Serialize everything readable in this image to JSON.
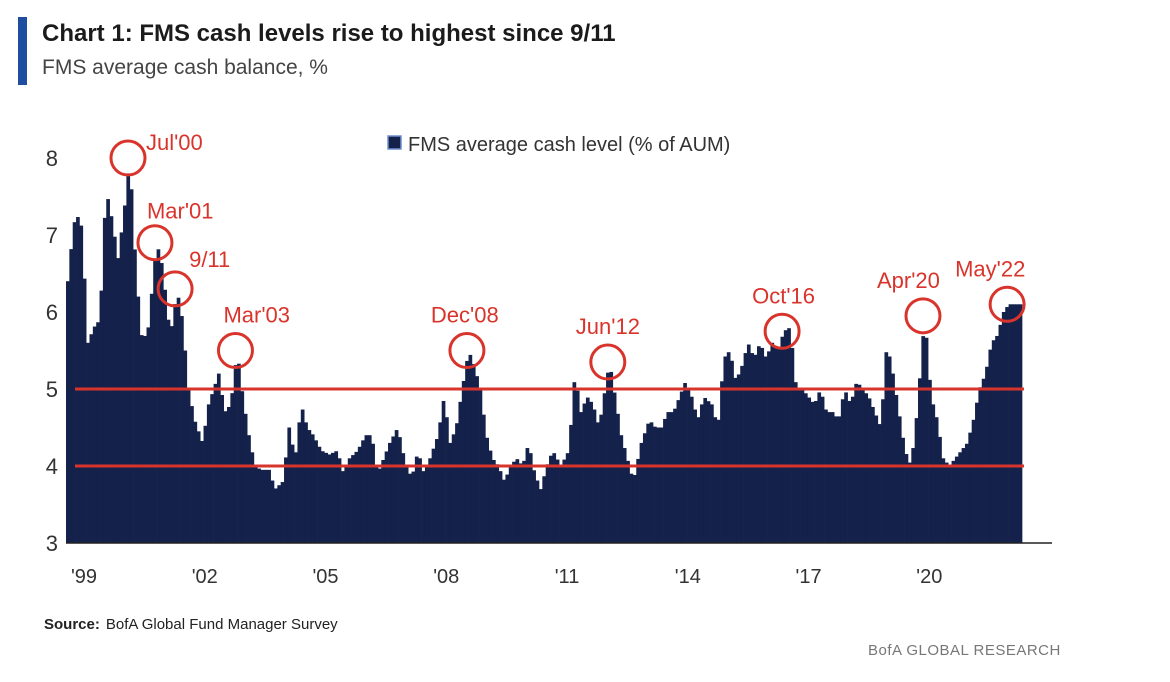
{
  "header": {
    "title": "Chart 1: FMS cash levels rise to highest since 9/11",
    "subtitle": "FMS average cash balance, %"
  },
  "footer": {
    "source_label": "Source:",
    "source_text": "BofA Global Fund Manager Survey",
    "brand": "BofA GLOBAL RESEARCH"
  },
  "colors": {
    "bars": "#14214b",
    "lines": "#d9342b",
    "annotation": "#d9342b",
    "accent": "#1f4ea1"
  },
  "chart_data": {
    "type": "bar",
    "title": "Chart 1: FMS cash levels rise to highest since 9/11",
    "ylabel": "",
    "xlabel": "",
    "ylim": [
      3,
      8
    ],
    "yticks": [
      3,
      4,
      5,
      6,
      7,
      8
    ],
    "xlim": [
      1999.0,
      2022.75
    ],
    "xtick_labels": [
      "'99",
      "'02",
      "'05",
      "'08",
      "'11",
      "'14",
      "'17",
      "'20"
    ],
    "xtick_values": [
      1999,
      2002,
      2005,
      2008,
      2011,
      2014,
      2017,
      2020
    ],
    "legend": {
      "label": "FMS average cash level (% of AUM)",
      "position": "top-center"
    },
    "reference_lines": [
      5.0,
      4.0
    ],
    "annotations": [
      {
        "label": "Jul'00",
        "x": 2000.54,
        "y": 8.0
      },
      {
        "label": "Mar'01",
        "x": 2001.21,
        "y": 6.9
      },
      {
        "label": "9/11",
        "x": 2001.71,
        "y": 6.3
      },
      {
        "label": "Mar'03",
        "x": 2003.21,
        "y": 5.5
      },
      {
        "label": "Dec'08",
        "x": 2008.96,
        "y": 5.5
      },
      {
        "label": "Jun'12",
        "x": 2012.46,
        "y": 5.35
      },
      {
        "label": "Oct'16",
        "x": 2016.79,
        "y": 5.75
      },
      {
        "label": "Apr'20",
        "x": 2020.29,
        "y": 5.95
      },
      {
        "label": "May'22",
        "x": 2022.38,
        "y": 6.1
      }
    ],
    "series": [
      {
        "name": "FMS average cash level (% of AUM)",
        "keypoints": [
          [
            1999.0,
            6.4
          ],
          [
            1999.1,
            6.9
          ],
          [
            1999.2,
            7.3
          ],
          [
            1999.35,
            7.1
          ],
          [
            1999.5,
            5.6
          ],
          [
            1999.65,
            5.8
          ],
          [
            1999.8,
            5.9
          ],
          [
            1999.95,
            7.6
          ],
          [
            2000.1,
            7.2
          ],
          [
            2000.25,
            6.7
          ],
          [
            2000.4,
            7.3
          ],
          [
            2000.54,
            8.0
          ],
          [
            2000.7,
            6.5
          ],
          [
            2000.85,
            5.6
          ],
          [
            2001.0,
            5.8
          ],
          [
            2001.21,
            6.9
          ],
          [
            2001.35,
            6.6
          ],
          [
            2001.5,
            5.9
          ],
          [
            2001.6,
            5.8
          ],
          [
            2001.71,
            6.3
          ],
          [
            2001.85,
            5.9
          ],
          [
            2002.0,
            5.0
          ],
          [
            2002.15,
            4.6
          ],
          [
            2002.35,
            4.3
          ],
          [
            2002.5,
            4.8
          ],
          [
            2002.75,
            5.2
          ],
          [
            2002.9,
            4.7
          ],
          [
            2003.05,
            4.8
          ],
          [
            2003.21,
            5.5
          ],
          [
            2003.35,
            4.9
          ],
          [
            2003.5,
            4.4
          ],
          [
            2003.65,
            4.0
          ],
          [
            2003.8,
            3.95
          ],
          [
            2004.0,
            3.95
          ],
          [
            2004.15,
            3.7
          ],
          [
            2004.35,
            3.8
          ],
          [
            2004.5,
            4.5
          ],
          [
            2004.65,
            4.1
          ],
          [
            2004.8,
            4.8
          ],
          [
            2004.95,
            4.5
          ],
          [
            2005.1,
            4.4
          ],
          [
            2005.3,
            4.2
          ],
          [
            2005.5,
            4.15
          ],
          [
            2005.7,
            4.2
          ],
          [
            2005.85,
            3.9
          ],
          [
            2006.0,
            4.1
          ],
          [
            2006.2,
            4.2
          ],
          [
            2006.4,
            4.4
          ],
          [
            2006.55,
            4.4
          ],
          [
            2006.7,
            3.9
          ],
          [
            2006.85,
            4.1
          ],
          [
            2007.0,
            4.3
          ],
          [
            2007.2,
            4.5
          ],
          [
            2007.4,
            4.0
          ],
          [
            2007.55,
            3.85
          ],
          [
            2007.7,
            4.2
          ],
          [
            2007.85,
            3.9
          ],
          [
            2008.0,
            4.1
          ],
          [
            2008.2,
            4.4
          ],
          [
            2008.35,
            4.9
          ],
          [
            2008.5,
            4.3
          ],
          [
            2008.65,
            4.5
          ],
          [
            2008.8,
            5.0
          ],
          [
            2008.96,
            5.5
          ],
          [
            2009.1,
            5.3
          ],
          [
            2009.25,
            5.0
          ],
          [
            2009.4,
            4.4
          ],
          [
            2009.55,
            4.1
          ],
          [
            2009.7,
            4.0
          ],
          [
            2009.85,
            3.8
          ],
          [
            2010.0,
            4.0
          ],
          [
            2010.15,
            4.1
          ],
          [
            2010.3,
            4.0
          ],
          [
            2010.45,
            4.3
          ],
          [
            2010.6,
            3.9
          ],
          [
            2010.75,
            3.7
          ],
          [
            2010.9,
            4.0
          ],
          [
            2011.05,
            4.2
          ],
          [
            2011.25,
            4.0
          ],
          [
            2011.45,
            4.2
          ],
          [
            2011.6,
            5.2
          ],
          [
            2011.75,
            4.7
          ],
          [
            2011.9,
            4.9
          ],
          [
            2012.05,
            4.8
          ],
          [
            2012.2,
            4.5
          ],
          [
            2012.35,
            5.0
          ],
          [
            2012.46,
            5.35
          ],
          [
            2012.6,
            4.9
          ],
          [
            2012.75,
            4.4
          ],
          [
            2012.9,
            4.1
          ],
          [
            2013.05,
            3.8
          ],
          [
            2013.25,
            4.3
          ],
          [
            2013.45,
            4.6
          ],
          [
            2013.6,
            4.5
          ],
          [
            2013.75,
            4.5
          ],
          [
            2013.9,
            4.7
          ],
          [
            2014.05,
            4.7
          ],
          [
            2014.2,
            4.9
          ],
          [
            2014.35,
            5.1
          ],
          [
            2014.5,
            4.9
          ],
          [
            2014.65,
            4.6
          ],
          [
            2014.8,
            4.9
          ],
          [
            2015.0,
            4.8
          ],
          [
            2015.15,
            4.5
          ],
          [
            2015.3,
            5.4
          ],
          [
            2015.45,
            5.5
          ],
          [
            2015.6,
            5.1
          ],
          [
            2015.75,
            5.3
          ],
          [
            2015.9,
            5.6
          ],
          [
            2016.05,
            5.4
          ],
          [
            2016.2,
            5.6
          ],
          [
            2016.35,
            5.4
          ],
          [
            2016.5,
            5.6
          ],
          [
            2016.65,
            5.5
          ],
          [
            2016.79,
            5.75
          ],
          [
            2016.95,
            5.8
          ],
          [
            2017.1,
            5.0
          ],
          [
            2017.25,
            5.0
          ],
          [
            2017.4,
            4.9
          ],
          [
            2017.55,
            4.8
          ],
          [
            2017.7,
            5.0
          ],
          [
            2017.85,
            4.7
          ],
          [
            2018.0,
            4.7
          ],
          [
            2018.15,
            4.6
          ],
          [
            2018.3,
            5.0
          ],
          [
            2018.45,
            4.8
          ],
          [
            2018.6,
            5.1
          ],
          [
            2018.75,
            5.0
          ],
          [
            2018.9,
            4.9
          ],
          [
            2019.05,
            4.7
          ],
          [
            2019.2,
            4.5
          ],
          [
            2019.35,
            5.6
          ],
          [
            2019.5,
            5.2
          ],
          [
            2019.65,
            4.7
          ],
          [
            2019.8,
            4.2
          ],
          [
            2019.95,
            4.0
          ],
          [
            2020.1,
            4.7
          ],
          [
            2020.29,
            5.95
          ],
          [
            2020.45,
            4.9
          ],
          [
            2020.6,
            4.6
          ],
          [
            2020.75,
            4.1
          ],
          [
            2020.9,
            4.0
          ],
          [
            2021.05,
            4.1
          ],
          [
            2021.2,
            4.2
          ],
          [
            2021.35,
            4.3
          ],
          [
            2021.5,
            4.6
          ],
          [
            2021.65,
            5.0
          ],
          [
            2021.8,
            5.2
          ],
          [
            2021.95,
            5.6
          ],
          [
            2022.1,
            5.7
          ],
          [
            2022.25,
            6.0
          ],
          [
            2022.38,
            6.1
          ]
        ]
      }
    ]
  }
}
